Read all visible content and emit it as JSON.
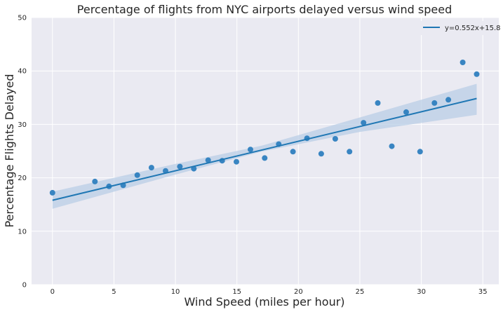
{
  "chart_data": {
    "type": "scatter",
    "title": "Percentage of flights from NYC airports delayed versus wind speed",
    "xlabel": "Wind Speed (miles per hour)",
    "ylabel": "Percentage Flights Delayed",
    "xlim": [
      -1.7,
      36.3
    ],
    "ylim": [
      0,
      50
    ],
    "xticks": [
      0,
      5,
      10,
      15,
      20,
      25,
      30,
      35
    ],
    "yticks": [
      0,
      10,
      20,
      30,
      40,
      50
    ],
    "grid": true,
    "legend_position": "top-right",
    "colors": {
      "points": "#2f7fbf",
      "line": "#1f77b4",
      "band": "#b9cde5",
      "grid": "#ffffff",
      "background": "#eaeaf2"
    },
    "scatter": {
      "x": [
        0,
        3.45,
        4.6,
        5.75,
        6.9,
        8.05,
        9.2,
        10.36,
        11.5,
        12.66,
        13.8,
        14.96,
        16.1,
        17.26,
        18.4,
        19.56,
        20.7,
        21.86,
        23.0,
        24.16,
        25.3,
        26.46,
        27.6,
        28.77,
        29.9,
        31.07,
        32.2,
        33.37,
        34.5
      ],
      "y": [
        17.2,
        19.3,
        18.4,
        18.6,
        20.5,
        21.9,
        21.3,
        22.1,
        21.7,
        23.3,
        23.2,
        23.0,
        25.3,
        23.7,
        26.3,
        24.9,
        27.4,
        24.5,
        27.3,
        24.9,
        30.3,
        34.0,
        25.9,
        32.3,
        24.9,
        34.0,
        34.6,
        41.6,
        39.4
      ]
    },
    "fit": {
      "label": "y=0.552x+15.8",
      "slope": 0.552,
      "intercept": 15.8,
      "x_range": [
        0,
        34.5
      ],
      "ci_band": {
        "x": [
          0,
          10,
          17,
          25,
          34.5
        ],
        "lower": [
          14.2,
          20.6,
          24.9,
          28.6,
          31.8
        ],
        "upper": [
          17.4,
          22.6,
          26.0,
          31.3,
          37.6
        ]
      }
    }
  }
}
